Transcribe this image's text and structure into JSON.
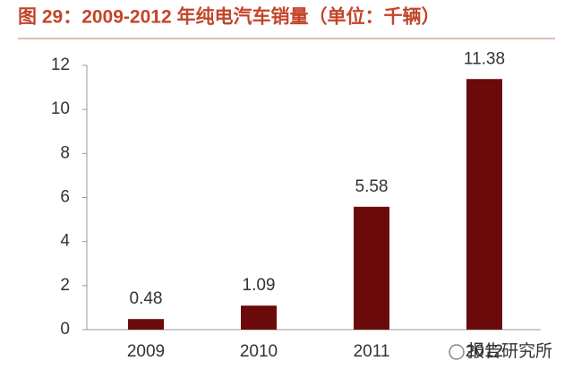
{
  "chart_data": {
    "type": "bar",
    "title": "图 29：2009-2012 年纯电汽车销量（单位：千辆）",
    "categories": [
      "2009",
      "2010",
      "2011",
      "2012"
    ],
    "values": [
      0.48,
      1.09,
      5.58,
      11.38
    ],
    "color": "#6b0a0a",
    "ylim": [
      0,
      12
    ],
    "yticks": [
      0,
      2,
      4,
      6,
      8,
      10,
      12
    ],
    "grid": false,
    "value_labels_shown": true,
    "watermark": "报告研究所"
  }
}
